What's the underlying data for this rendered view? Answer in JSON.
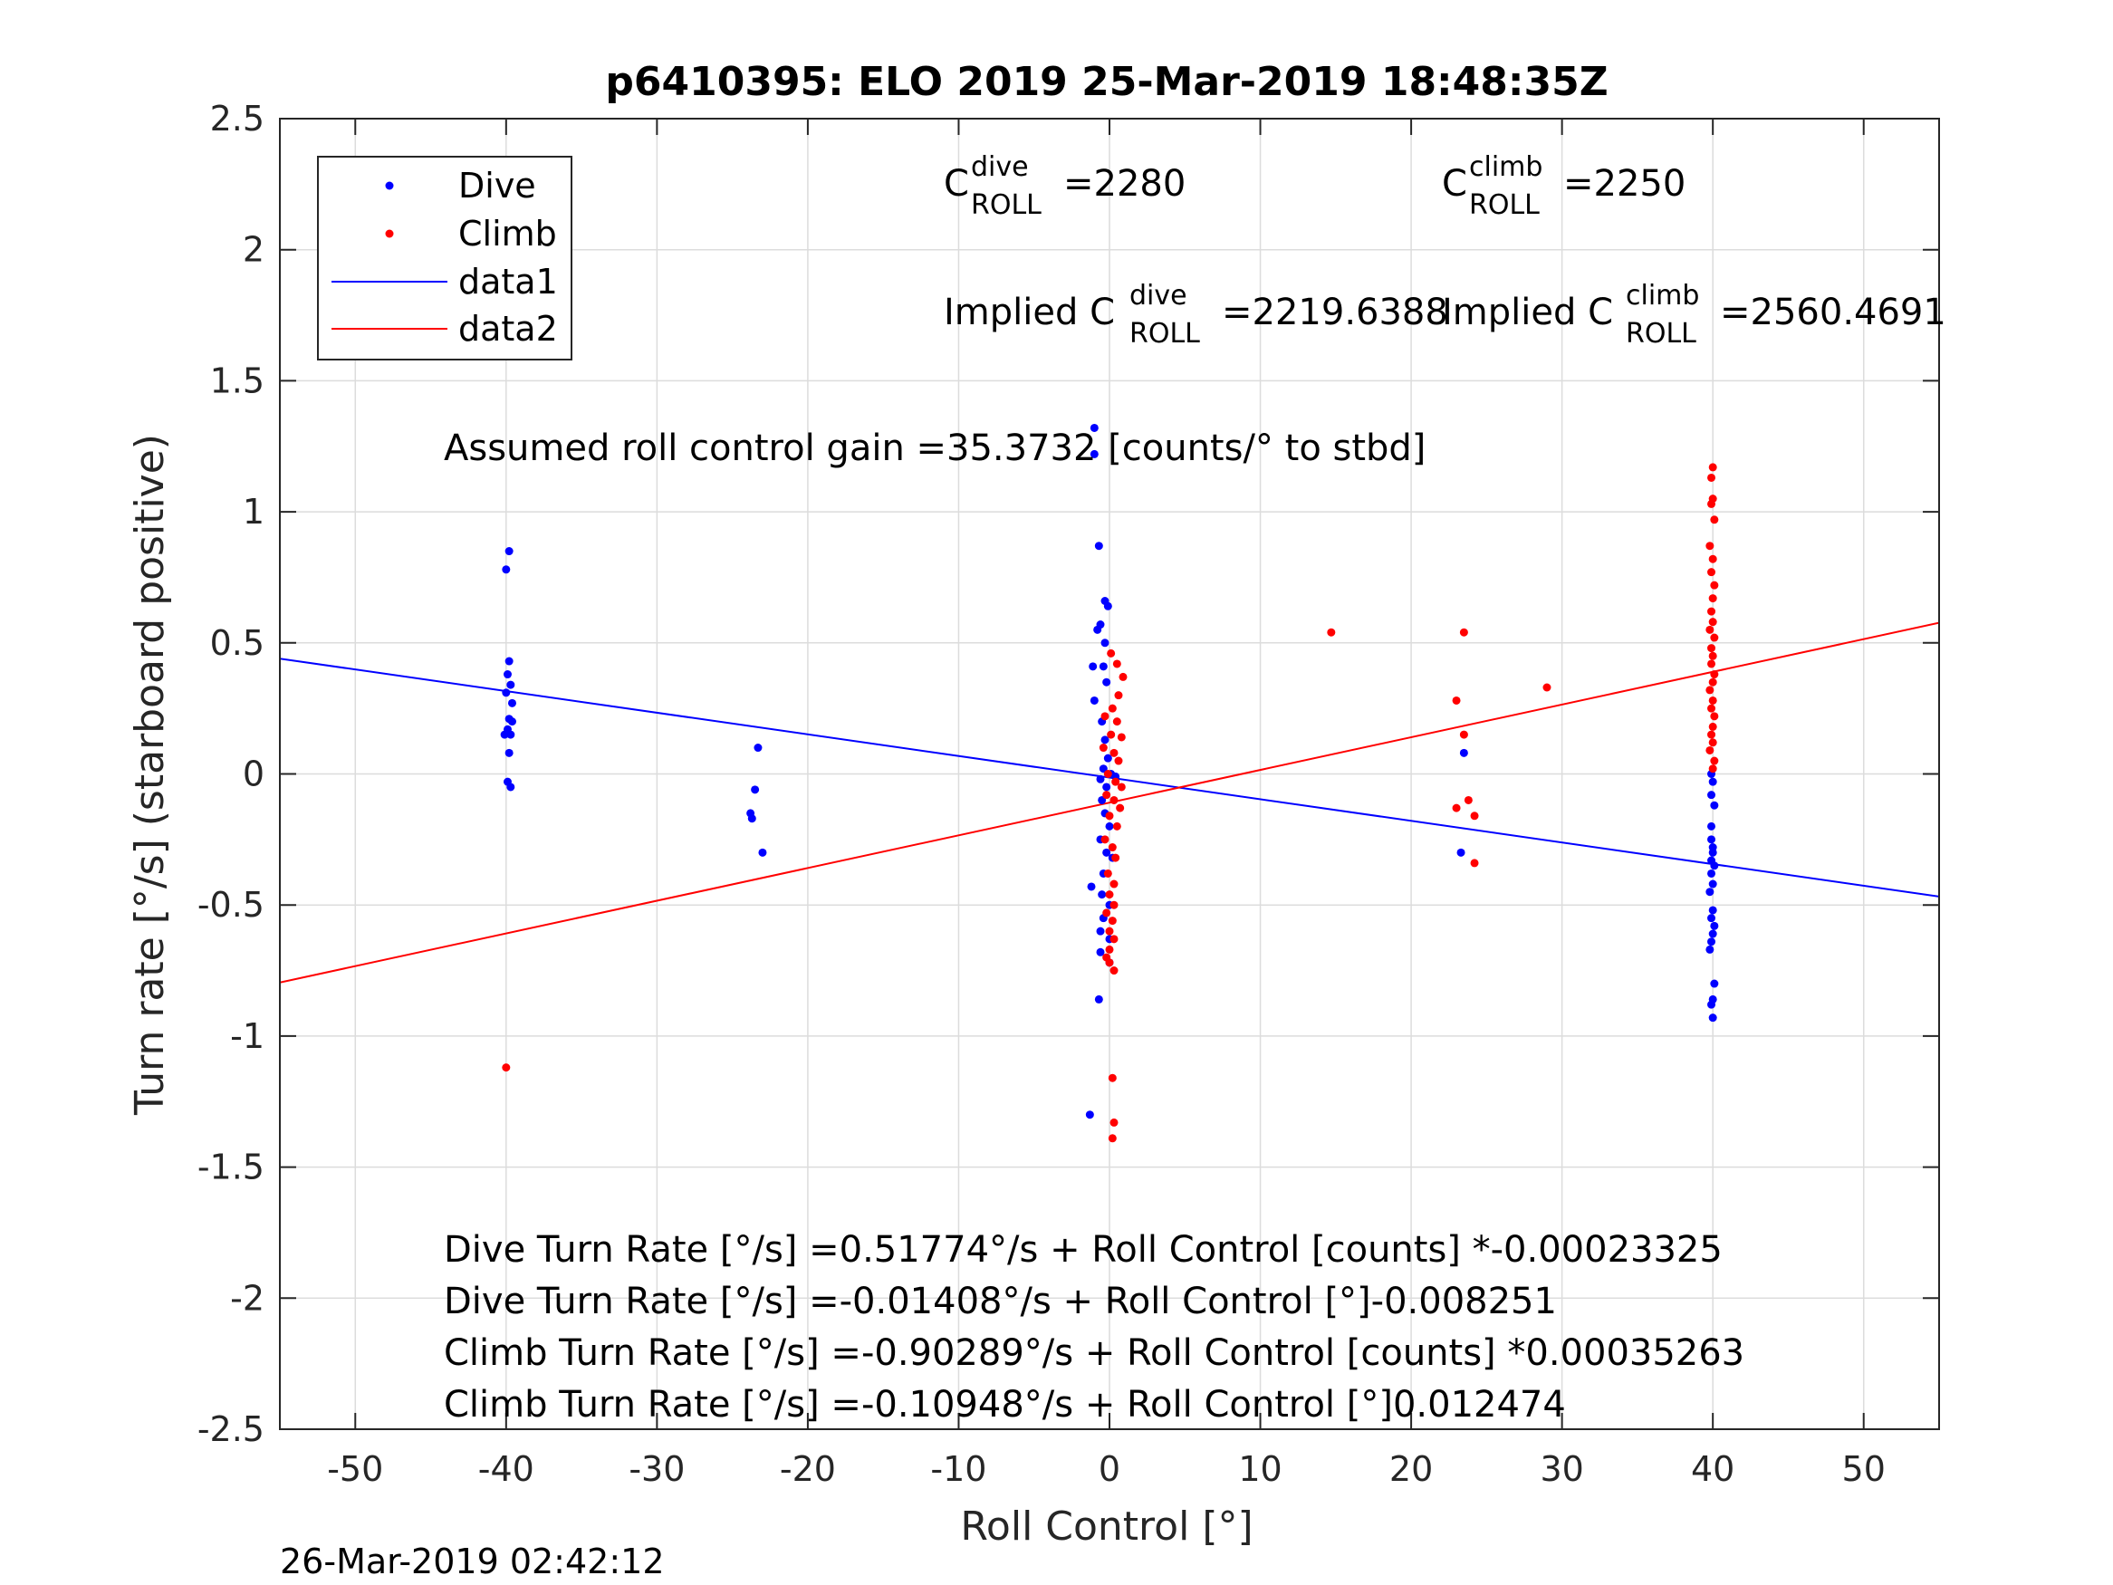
{
  "chart_data": {
    "type": "scatter",
    "title": "p6410395: ELO 2019 25-Mar-2019 18:48:35Z",
    "xlabel": "Roll Control [°]",
    "ylabel": "Turn rate [°/s] (starboard positive)",
    "xlim": [
      -55,
      55
    ],
    "ylim": [
      -2.5,
      2.5
    ],
    "xticks": [
      -50,
      -40,
      -30,
      -20,
      -10,
      0,
      10,
      20,
      30,
      40,
      50
    ],
    "xtick_labels": [
      "-50",
      "-40",
      "-30",
      "-20",
      "-10",
      "0",
      "10",
      "20",
      "30",
      "40",
      "50"
    ],
    "yticks": [
      -2.5,
      -2,
      -1.5,
      -1,
      -0.5,
      0,
      0.5,
      1,
      1.5,
      2,
      2.5
    ],
    "ytick_labels": [
      "-2.5",
      "-2",
      "-1.5",
      "-1",
      "-0.5",
      "0",
      "0.5",
      "1",
      "1.5",
      "2",
      "2.5"
    ],
    "grid": true,
    "legend_position": "top-left",
    "legend": [
      {
        "label": "Dive",
        "kind": "marker",
        "color": "#0000ff"
      },
      {
        "label": "Climb",
        "kind": "marker",
        "color": "#ff0000"
      },
      {
        "label": "data1",
        "kind": "line",
        "color": "#0000ff"
      },
      {
        "label": "data2",
        "kind": "line",
        "color": "#ff0000"
      }
    ],
    "series": [
      {
        "name": "Dive",
        "color": "#0000ff",
        "points": [
          [
            -39.8,
            0.85
          ],
          [
            -40.0,
            0.78
          ],
          [
            -39.8,
            0.43
          ],
          [
            -39.9,
            0.38
          ],
          [
            -39.7,
            0.34
          ],
          [
            -40.0,
            0.31
          ],
          [
            -39.6,
            0.27
          ],
          [
            -39.8,
            0.21
          ],
          [
            -39.6,
            0.2
          ],
          [
            -39.9,
            0.17
          ],
          [
            -40.1,
            0.15
          ],
          [
            -39.7,
            0.15
          ],
          [
            -39.8,
            0.08
          ],
          [
            -39.9,
            -0.03
          ],
          [
            -39.7,
            -0.05
          ],
          [
            -23.3,
            0.1
          ],
          [
            -23.5,
            -0.06
          ],
          [
            -23.8,
            -0.15
          ],
          [
            -23.7,
            -0.17
          ],
          [
            -23.0,
            -0.3
          ],
          [
            -1.0,
            1.32
          ],
          [
            -1.0,
            1.22
          ],
          [
            -0.7,
            0.87
          ],
          [
            -0.3,
            0.66
          ],
          [
            -0.1,
            0.64
          ],
          [
            -0.6,
            0.57
          ],
          [
            -0.8,
            0.55
          ],
          [
            -0.3,
            0.5
          ],
          [
            -1.1,
            0.41
          ],
          [
            -0.4,
            0.41
          ],
          [
            -0.2,
            0.35
          ],
          [
            -1.0,
            0.28
          ],
          [
            -0.5,
            0.2
          ],
          [
            -0.3,
            0.13
          ],
          [
            -0.1,
            0.06
          ],
          [
            -0.4,
            0.02
          ],
          [
            0.1,
            0.0
          ],
          [
            -0.6,
            -0.02
          ],
          [
            0.4,
            -0.01
          ],
          [
            -0.2,
            -0.05
          ],
          [
            -0.5,
            -0.1
          ],
          [
            -0.3,
            -0.15
          ],
          [
            0.0,
            -0.2
          ],
          [
            -0.6,
            -0.25
          ],
          [
            -0.2,
            -0.3
          ],
          [
            0.2,
            -0.32
          ],
          [
            -0.4,
            -0.38
          ],
          [
            -1.2,
            -0.43
          ],
          [
            -0.5,
            -0.46
          ],
          [
            0.0,
            -0.5
          ],
          [
            -0.4,
            -0.55
          ],
          [
            -0.6,
            -0.6
          ],
          [
            0.0,
            -0.63
          ],
          [
            -0.6,
            -0.68
          ],
          [
            0.0,
            -0.72
          ],
          [
            -0.7,
            -0.86
          ],
          [
            -1.3,
            -1.3
          ],
          [
            23.5,
            0.08
          ],
          [
            23.3,
            -0.3
          ],
          [
            39.9,
            0.0
          ],
          [
            40.0,
            -0.03
          ],
          [
            39.9,
            -0.08
          ],
          [
            40.1,
            -0.12
          ],
          [
            39.9,
            -0.2
          ],
          [
            39.9,
            -0.25
          ],
          [
            40.0,
            -0.28
          ],
          [
            40.0,
            -0.3
          ],
          [
            39.9,
            -0.33
          ],
          [
            40.1,
            -0.35
          ],
          [
            39.9,
            -0.38
          ],
          [
            40.0,
            -0.42
          ],
          [
            39.8,
            -0.45
          ],
          [
            40.0,
            -0.52
          ],
          [
            39.9,
            -0.55
          ],
          [
            40.1,
            -0.58
          ],
          [
            40.0,
            -0.61
          ],
          [
            39.9,
            -0.64
          ],
          [
            39.8,
            -0.67
          ],
          [
            40.1,
            -0.8
          ],
          [
            40.0,
            -0.86
          ],
          [
            39.9,
            -0.88
          ],
          [
            40.0,
            -0.93
          ]
        ]
      },
      {
        "name": "Climb",
        "color": "#ff0000",
        "points": [
          [
            -40.0,
            -1.12
          ],
          [
            14.7,
            0.54
          ],
          [
            23.5,
            0.54
          ],
          [
            23.0,
            0.28
          ],
          [
            23.5,
            0.15
          ],
          [
            29.0,
            0.33
          ],
          [
            23.8,
            -0.1
          ],
          [
            23.0,
            -0.13
          ],
          [
            24.2,
            -0.16
          ],
          [
            24.2,
            -0.34
          ],
          [
            0.5,
            0.42
          ],
          [
            0.1,
            0.46
          ],
          [
            0.9,
            0.37
          ],
          [
            0.6,
            0.3
          ],
          [
            0.2,
            0.25
          ],
          [
            -0.3,
            0.22
          ],
          [
            0.5,
            0.2
          ],
          [
            0.1,
            0.15
          ],
          [
            0.8,
            0.14
          ],
          [
            -0.4,
            0.1
          ],
          [
            0.3,
            0.08
          ],
          [
            0.6,
            0.05
          ],
          [
            -0.1,
            0.0
          ],
          [
            0.4,
            -0.03
          ],
          [
            0.8,
            -0.05
          ],
          [
            -0.2,
            -0.08
          ],
          [
            0.3,
            -0.1
          ],
          [
            0.7,
            -0.13
          ],
          [
            0.0,
            -0.16
          ],
          [
            0.5,
            -0.2
          ],
          [
            -0.3,
            -0.25
          ],
          [
            0.2,
            -0.28
          ],
          [
            0.4,
            -0.32
          ],
          [
            -0.1,
            -0.38
          ],
          [
            0.3,
            -0.42
          ],
          [
            0.0,
            -0.46
          ],
          [
            0.3,
            -0.5
          ],
          [
            -0.2,
            -0.53
          ],
          [
            0.2,
            -0.56
          ],
          [
            0.0,
            -0.6
          ],
          [
            0.3,
            -0.63
          ],
          [
            0.0,
            -0.67
          ],
          [
            -0.2,
            -0.7
          ],
          [
            0.0,
            -0.72
          ],
          [
            0.3,
            -0.75
          ],
          [
            0.2,
            -1.16
          ],
          [
            0.3,
            -1.33
          ],
          [
            0.2,
            -1.39
          ],
          [
            40.0,
            1.17
          ],
          [
            39.9,
            1.13
          ],
          [
            40.0,
            1.05
          ],
          [
            39.9,
            1.03
          ],
          [
            40.1,
            0.97
          ],
          [
            39.8,
            0.87
          ],
          [
            40.0,
            0.82
          ],
          [
            39.9,
            0.77
          ],
          [
            40.1,
            0.72
          ],
          [
            40.0,
            0.67
          ],
          [
            39.9,
            0.62
          ],
          [
            40.0,
            0.58
          ],
          [
            39.8,
            0.55
          ],
          [
            40.1,
            0.52
          ],
          [
            39.9,
            0.48
          ],
          [
            40.0,
            0.45
          ],
          [
            39.9,
            0.42
          ],
          [
            40.1,
            0.38
          ],
          [
            40.0,
            0.35
          ],
          [
            39.8,
            0.32
          ],
          [
            40.0,
            0.28
          ],
          [
            39.9,
            0.25
          ],
          [
            40.1,
            0.22
          ],
          [
            40.0,
            0.18
          ],
          [
            39.9,
            0.15
          ],
          [
            40.0,
            0.12
          ],
          [
            39.8,
            0.09
          ],
          [
            40.1,
            0.05
          ],
          [
            40.0,
            0.02
          ]
        ]
      }
    ],
    "lines": [
      {
        "name": "data1",
        "color": "#0000ff",
        "points": [
          [
            -55,
            0.4398
          ],
          [
            55,
            -0.4678
          ]
        ]
      },
      {
        "name": "data2",
        "color": "#ff0000",
        "points": [
          [
            -55,
            -0.7956
          ],
          [
            55,
            0.5766
          ]
        ]
      }
    ],
    "annotations": {
      "c_dive": {
        "base": "C",
        "sup": "dive",
        "sub": "ROLL",
        "value": "=2280"
      },
      "c_climb": {
        "base": "C",
        "sup": "climb",
        "sub": "ROLL",
        "value": "=2250"
      },
      "implied_dive": {
        "prefix": "Implied C",
        "sup": "dive",
        "sub": "ROLL",
        "value": "=2219.6388"
      },
      "implied_climb": {
        "prefix": "Implied C",
        "sup": "climb",
        "sub": "ROLL",
        "value": "=2560.4691"
      },
      "gain": "Assumed roll control gain =35.3732 [counts/° to stbd]",
      "eq1": "Dive Turn Rate [°/s] =0.51774°/s + Roll Control [counts] *-0.00023325",
      "eq2": "Dive Turn Rate [°/s] =-0.01408°/s + Roll Control [°]-0.008251",
      "eq3": "Climb Turn Rate [°/s] =-0.90289°/s + Roll Control [counts] *0.00035263",
      "eq4": "Climb Turn Rate [°/s] =-0.10948°/s + Roll Control [°]0.012474"
    },
    "footer": "26-Mar-2019 02:42:12"
  }
}
